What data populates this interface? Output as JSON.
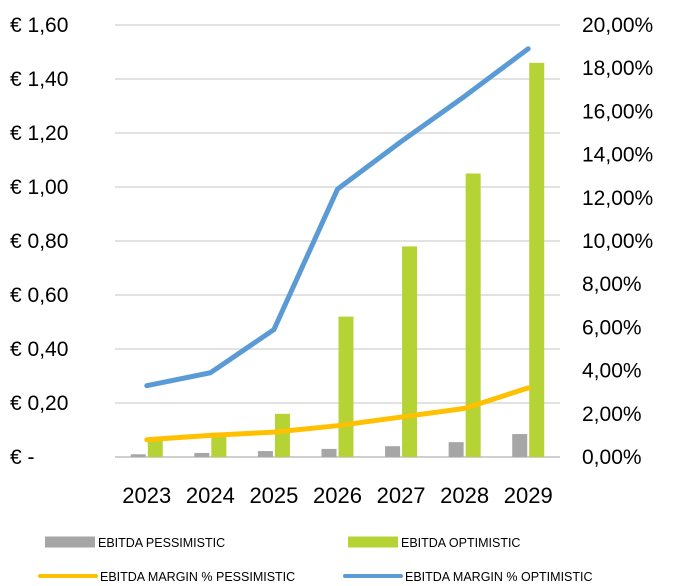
{
  "chart_data": {
    "type": "bar",
    "categories": [
      "2023",
      "2024",
      "2025",
      "2026",
      "2027",
      "2028",
      "2029"
    ],
    "series": [
      {
        "name": "EBITDA PESSIMISTIC",
        "type": "bar",
        "axis": "left",
        "color": "#a6a6a6",
        "values": [
          0.01,
          0.015,
          0.022,
          0.03,
          0.04,
          0.055,
          0.085
        ]
      },
      {
        "name": "EBITDA OPTIMISTIC",
        "type": "bar",
        "axis": "left",
        "color": "#b5d334",
        "values": [
          0.06,
          0.09,
          0.16,
          0.52,
          0.78,
          1.05,
          1.46
        ]
      },
      {
        "name": "EBITDA MARGIN % PESSIMISTIC",
        "type": "line",
        "axis": "right",
        "color": "#ffc000",
        "values": [
          0.8,
          1.0,
          1.15,
          1.45,
          1.85,
          2.25,
          3.2
        ]
      },
      {
        "name": "EBITDA MARGIN % OPTIMISTIC",
        "type": "line",
        "axis": "right",
        "color": "#5b9bd5",
        "values": [
          3.3,
          3.9,
          5.9,
          12.4,
          14.6,
          16.7,
          18.9
        ]
      }
    ],
    "y_left": {
      "min": 0,
      "max": 1.6,
      "step": 0.2,
      "tick_labels": [
        "€ -",
        "€ 0,20",
        "€ 0,40",
        "€ 0,60",
        "€ 0,80",
        "€ 1,00",
        "€ 1,20",
        "€ 1,40",
        "€ 1,60"
      ]
    },
    "y_right": {
      "min": 0,
      "max": 20,
      "step": 2,
      "tick_labels": [
        "0,00%",
        "2,00%",
        "4,00%",
        "6,00%",
        "8,00%",
        "10,00%",
        "12,00%",
        "14,00%",
        "16,00%",
        "18,00%",
        "20,00%"
      ]
    },
    "grid": true,
    "legend_position": "bottom",
    "legend": [
      {
        "label": "EBITDA PESSIMISTIC",
        "kind": "bar",
        "color": "#a6a6a6"
      },
      {
        "label": "EBITDA OPTIMISTIC",
        "kind": "bar",
        "color": "#b5d334"
      },
      {
        "label": "EBITDA MARGIN % PESSIMISTIC",
        "kind": "line",
        "color": "#ffc000"
      },
      {
        "label": "EBITDA MARGIN % OPTIMISTIC",
        "kind": "line",
        "color": "#5b9bd5"
      }
    ],
    "colors": {
      "grid": "#d9d9d9",
      "axis": "#bfbfbf"
    }
  }
}
